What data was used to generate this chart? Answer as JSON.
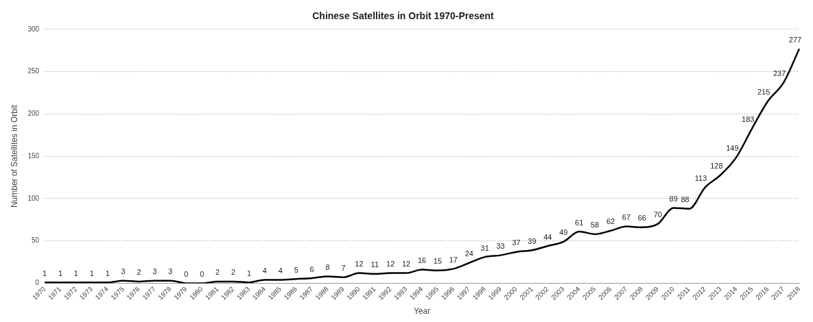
{
  "chart_data": {
    "type": "line",
    "title": "Chinese Satellites in Orbit 1970-Present",
    "xlabel": "Year",
    "ylabel": "Number of Satellites in Orbit",
    "categories": [
      "1970",
      "1971",
      "1972",
      "1973",
      "1974",
      "1975",
      "1976",
      "1977",
      "1978",
      "1979",
      "1980",
      "1981",
      "1982",
      "1983",
      "1984",
      "1985",
      "1986",
      "1987",
      "1988",
      "1989",
      "1990",
      "1991",
      "1992",
      "1993",
      "1994",
      "1995",
      "1996",
      "1997",
      "1998",
      "1999",
      "2000",
      "2001",
      "2002",
      "2003",
      "2004",
      "2005",
      "2006",
      "2007",
      "2008",
      "2009",
      "2010",
      "2011",
      "2012",
      "2013",
      "2014",
      "2015",
      "2016",
      "2017",
      "2018"
    ],
    "series": [
      {
        "color": "#000000",
        "values": [
          1,
          1,
          1,
          1,
          1,
          3,
          2,
          3,
          3,
          0,
          0,
          2,
          2,
          1,
          4,
          4,
          5,
          6,
          8,
          7,
          12,
          11,
          12,
          12,
          16,
          15,
          17,
          24,
          31,
          33,
          37,
          39,
          44,
          49,
          61,
          58,
          62,
          67,
          66,
          70,
          89,
          88,
          113,
          128,
          149,
          183,
          215,
          237,
          277
        ]
      }
    ],
    "ylim": [
      0,
      300
    ],
    "yticks": [
      0,
      50,
      100,
      150,
      200,
      250,
      300
    ],
    "grid": "y",
    "legend": false,
    "marker": "none",
    "line_style": "solid",
    "data_labels": true
  }
}
